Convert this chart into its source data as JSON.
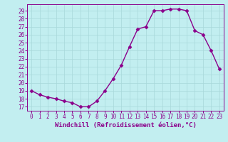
{
  "x": [
    0,
    1,
    2,
    3,
    4,
    5,
    6,
    7,
    8,
    9,
    10,
    11,
    12,
    13,
    14,
    15,
    16,
    17,
    18,
    19,
    20,
    21,
    22,
    23
  ],
  "y": [
    19.0,
    18.5,
    18.2,
    18.0,
    17.7,
    17.5,
    17.0,
    17.0,
    17.7,
    19.0,
    20.5,
    22.2,
    24.5,
    26.7,
    27.0,
    29.0,
    29.0,
    29.2,
    29.2,
    29.0,
    26.5,
    26.0,
    24.0,
    21.7
  ],
  "line_color": "#8B008B",
  "marker_color": "#8B008B",
  "bg_color": "#C2EEF0",
  "grid_color": "#A8D8DA",
  "xlabel": "Windchill (Refroidissement éolien,°C)",
  "xlim": [
    -0.5,
    23.5
  ],
  "ylim": [
    16.5,
    29.8
  ],
  "yticks": [
    17,
    18,
    19,
    20,
    21,
    22,
    23,
    24,
    25,
    26,
    27,
    28,
    29
  ],
  "xticks": [
    0,
    1,
    2,
    3,
    4,
    5,
    6,
    7,
    8,
    9,
    10,
    11,
    12,
    13,
    14,
    15,
    16,
    17,
    18,
    19,
    20,
    21,
    22,
    23
  ],
  "tick_fontsize": 5.5,
  "xlabel_fontsize": 6.5,
  "linewidth": 1.0,
  "markersize": 2.5
}
